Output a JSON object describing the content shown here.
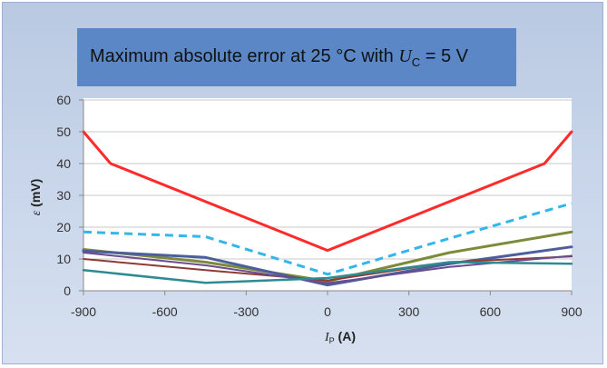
{
  "chart_data": {
    "type": "line",
    "title_prefix": "Maximum absolute error at 25 °C with ",
    "title_symbol": "U",
    "title_subscript": "C",
    "title_suffix": " = 5 V",
    "xlabel_symbol": "I",
    "xlabel_subscript": "P",
    "xlabel_unit": " (A)",
    "ylabel_symbol": "ε",
    "ylabel_unit": " (mV)",
    "xlim": [
      -900,
      900
    ],
    "ylim": [
      0,
      60
    ],
    "xticks": [
      "-900",
      "-600",
      "-300",
      "0",
      "300",
      "600",
      "900"
    ],
    "yticks": [
      "0",
      "10",
      "20",
      "30",
      "40",
      "50",
      "60"
    ],
    "grid": "horizontal",
    "series": [
      {
        "color": "#ff2a2a",
        "dash": "solid",
        "width": 3,
        "points": [
          [
            -900,
            50
          ],
          [
            -800,
            40
          ],
          [
            0,
            12.7
          ],
          [
            800,
            40
          ],
          [
            900,
            50
          ]
        ]
      },
      {
        "color": "#33b6ea",
        "dash": "dashed",
        "width": 3,
        "points": [
          [
            -900,
            18.5
          ],
          [
            -450,
            17
          ],
          [
            0,
            5.2
          ],
          [
            450,
            16.5
          ],
          [
            900,
            27.5
          ]
        ]
      },
      {
        "color": "#7d8a3a",
        "dash": "solid",
        "width": 3,
        "points": [
          [
            -900,
            13
          ],
          [
            -450,
            9
          ],
          [
            0,
            3
          ],
          [
            450,
            12
          ],
          [
            900,
            18.5
          ]
        ]
      },
      {
        "color": "#4b5f9c",
        "dash": "solid",
        "width": 3,
        "points": [
          [
            -900,
            12.5
          ],
          [
            -450,
            10.5
          ],
          [
            0,
            1.8
          ],
          [
            450,
            8.5
          ],
          [
            900,
            13.8
          ]
        ]
      },
      {
        "color": "#8e3b36",
        "dash": "solid",
        "width": 2,
        "points": [
          [
            -900,
            10
          ],
          [
            -450,
            6.5
          ],
          [
            0,
            3.2
          ],
          [
            450,
            9
          ],
          [
            900,
            10.8
          ]
        ]
      },
      {
        "color": "#6a4c8f",
        "dash": "solid",
        "width": 2,
        "points": [
          [
            -900,
            12
          ],
          [
            -450,
            8
          ],
          [
            0,
            2.4
          ],
          [
            450,
            7.5
          ],
          [
            900,
            11
          ]
        ]
      },
      {
        "color": "#2e8a93",
        "dash": "solid",
        "width": 2.5,
        "points": [
          [
            -900,
            6.5
          ],
          [
            -450,
            2.5
          ],
          [
            0,
            4
          ],
          [
            450,
            9
          ],
          [
            900,
            8.5
          ]
        ]
      }
    ]
  }
}
